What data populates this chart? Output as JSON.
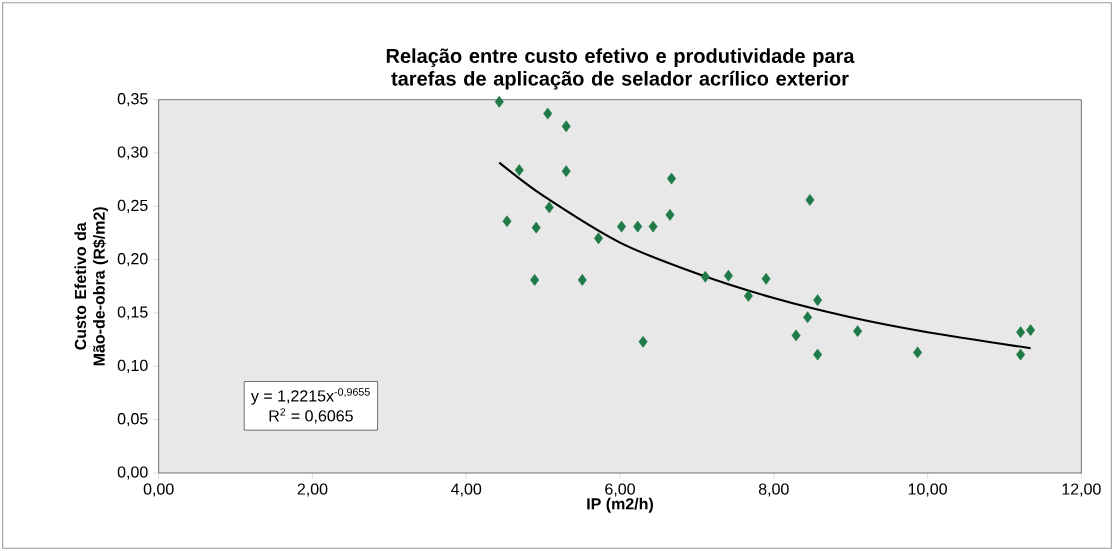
{
  "chart_data": {
    "type": "scatter",
    "title": "Relação entre custo efetivo e produtividade para tarefas de aplicação de selador acrílico exterior",
    "xlabel": "IP (m2/h)",
    "ylabel": "Custo Efetivo da Mão-de-obra (R$/m2)",
    "x": [
      4.43,
      5.06,
      5.3,
      4.69,
      5.3,
      6.67,
      5.08,
      6.65,
      4.53,
      4.91,
      6.02,
      6.23,
      6.43,
      5.72,
      4.89,
      5.51,
      6.3,
      7.11,
      7.41,
      7.9,
      7.67,
      8.47,
      8.57,
      8.44,
      8.29,
      8.57,
      9.09,
      9.87,
      11.21,
      11.34,
      11.21
    ],
    "series": [
      {
        "color": "#1e7a46",
        "values": [
          0.348,
          0.337,
          0.325,
          0.284,
          0.283,
          0.276,
          0.249,
          0.242,
          0.236,
          0.23,
          0.231,
          0.231,
          0.231,
          0.22,
          0.181,
          0.181,
          0.123,
          0.184,
          0.185,
          0.182,
          0.166,
          0.256,
          0.162,
          0.146,
          0.129,
          0.111,
          0.133,
          0.113,
          0.132,
          0.134,
          0.111
        ]
      },
      {
        "type": "line",
        "color": "#000000",
        "marker": "none",
        "line_style": "solid",
        "x": [
          4.43,
          5,
          6,
          7,
          8,
          9,
          10,
          11.34
        ],
        "values": [
          0.291,
          0.26,
          0.216,
          0.187,
          0.164,
          0.146,
          0.132,
          0.117
        ]
      }
    ],
    "annotations": [
      "y = 1,2215x$^{-0,9655}$",
      "R$^{2}$ = 0,6065"
    ],
    "xlim": [
      0,
      12
    ],
    "ylim": [
      0,
      0.35
    ],
    "xticks": [
      {
        "value": 0,
        "label": "0,00"
      },
      {
        "value": 2,
        "label": "2,00"
      },
      {
        "value": 4,
        "label": "4,00"
      },
      {
        "value": 6,
        "label": "6,00"
      },
      {
        "value": 8,
        "label": "8,00"
      },
      {
        "value": 10,
        "label": "10,00"
      },
      {
        "value": 12,
        "label": "12,00"
      }
    ],
    "yticks": [
      {
        "value": 0,
        "label": "0,00"
      },
      {
        "value": 0.05,
        "label": "0,05"
      },
      {
        "value": 0.1,
        "label": "0,10"
      },
      {
        "value": 0.15,
        "label": "0,15"
      },
      {
        "value": 0.2,
        "label": "0,20"
      },
      {
        "value": 0.25,
        "label": "0,25"
      },
      {
        "value": 0.3,
        "label": "0,30"
      },
      {
        "value": 0.35,
        "label": "0,35"
      }
    ],
    "marker": "diamond"
  }
}
